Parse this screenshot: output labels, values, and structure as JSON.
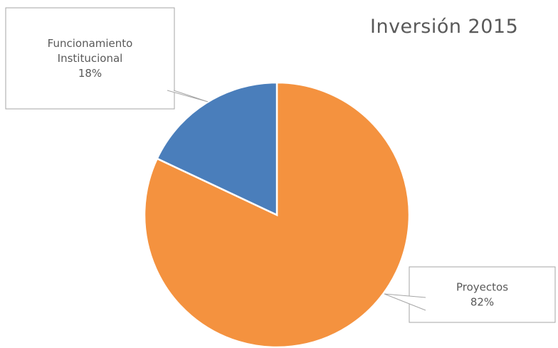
{
  "chart_data": {
    "type": "pie",
    "title": "Inversión 2015",
    "slices": [
      {
        "name": "Proyectos",
        "percent_label": "82%",
        "value": 82,
        "color": "#F4923F",
        "label_lines": [
          "Proyectos",
          "82%"
        ]
      },
      {
        "name": "Funcionamiento Institucional",
        "percent_label": "18%",
        "value": 18,
        "color": "#4A7EBB",
        "label_lines": [
          "Funcionamiento",
          "Institucional",
          "18%"
        ]
      }
    ],
    "start_angle_deg": 0,
    "direction": "clockwise",
    "slice_border_color": "#ffffff",
    "callout_border_color": "#A6A6A6"
  }
}
